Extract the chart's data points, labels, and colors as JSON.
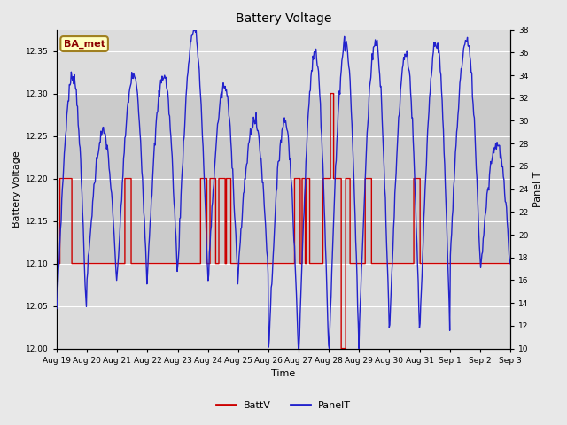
{
  "title": "Battery Voltage",
  "xlabel": "Time",
  "ylabel_left": "Battery Voltage",
  "ylabel_right": "Panel T",
  "annotation": "BA_met",
  "ylim_left": [
    12.0,
    12.375
  ],
  "ylim_right": [
    10,
    38
  ],
  "yticks_left": [
    12.0,
    12.05,
    12.1,
    12.15,
    12.2,
    12.25,
    12.3,
    12.35
  ],
  "yticks_right": [
    10,
    12,
    14,
    16,
    18,
    20,
    22,
    24,
    26,
    28,
    30,
    32,
    34,
    36,
    38
  ],
  "x_labels": [
    "Aug 19",
    "Aug 20",
    "Aug 21",
    "Aug 22",
    "Aug 23",
    "Aug 24",
    "Aug 25",
    "Aug 26",
    "Aug 27",
    "Aug 28",
    "Aug 29",
    "Aug 30",
    "Aug 31",
    "Sep 1",
    "Sep 2",
    "Sep 3"
  ],
  "background_color": "#e8e8e8",
  "plot_bg_color": "#dcdcdc",
  "grid_color": "#ffffff",
  "batt_color": "#cc0000",
  "panel_color": "#2222cc",
  "shaded_band": [
    12.1,
    12.3
  ],
  "shaded_band_color": "#c8c8c8",
  "figsize": [
    6.4,
    4.8
  ],
  "dpi": 100
}
